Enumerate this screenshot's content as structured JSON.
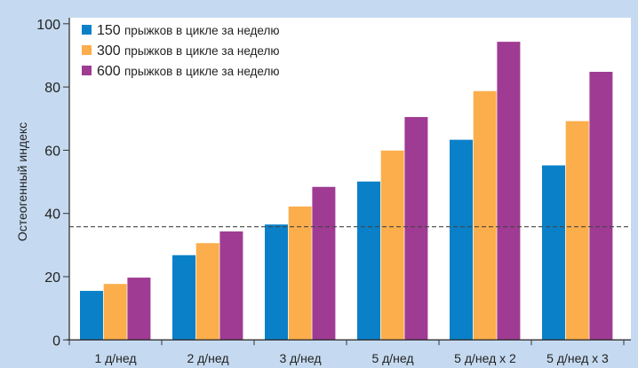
{
  "chart_data": {
    "type": "bar",
    "title": "",
    "xlabel": "",
    "ylabel": "Остеогенный индекс",
    "ylim": [
      0,
      100
    ],
    "yticks": [
      0,
      20,
      40,
      60,
      80,
      100
    ],
    "categories": [
      "1 д/нед",
      "2 д/нед",
      "3 д/нед",
      "5 д/нед",
      "5 д/нед x 2",
      "5 д/нед x 3"
    ],
    "series": [
      {
        "name_num": "150",
        "name_text": "прыжков в цикле за неделю",
        "color": "#0a80c8",
        "values": [
          15.5,
          26.8,
          36.5,
          50.1,
          63.3,
          55.2
        ]
      },
      {
        "name_num": "300",
        "name_text": "прыжков в цикле за неделю",
        "color": "#fbae4b",
        "values": [
          17.7,
          30.6,
          42.2,
          59.9,
          78.7,
          69.2
        ]
      },
      {
        "name_num": "600",
        "name_text": "прыжков в цикле за неделю",
        "color": "#9f3b93",
        "values": [
          19.7,
          34.3,
          48.4,
          70.5,
          94.3,
          84.8
        ]
      }
    ],
    "reference_line": 35.8,
    "legend": "top-left",
    "grid": false
  }
}
